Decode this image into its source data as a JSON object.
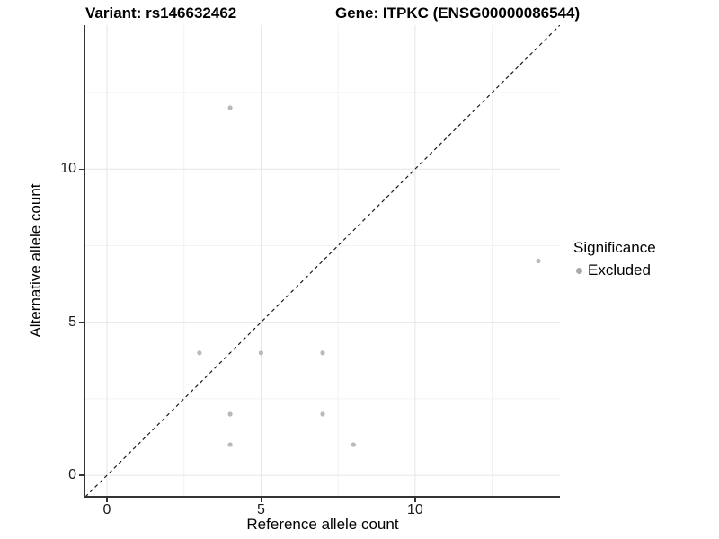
{
  "titles": {
    "variant": "Variant: rs146632462",
    "gene": "Gene: ITPKC (ENSG00000086544)"
  },
  "chart_data": {
    "type": "scatter",
    "xlabel": "Reference allele count",
    "ylabel": "Alternative allele count",
    "xlim": [
      -0.7,
      14.7
    ],
    "ylim": [
      -0.7,
      14.7
    ],
    "x_ticks": [
      0,
      5,
      10
    ],
    "y_ticks": [
      0,
      5,
      10
    ],
    "x_minor_ticks": [
      2.5,
      7.5,
      12.5
    ],
    "y_minor_ticks": [
      2.5,
      7.5,
      12.5
    ],
    "grid": "major_and_minor",
    "identity_line": {
      "style": "dashed",
      "from": -0.7,
      "to": 14.7,
      "color": "#1a1a1a"
    },
    "series": [
      {
        "name": "Excluded",
        "color": "#b9b9b9",
        "points": [
          [
            3,
            4
          ],
          [
            4,
            1
          ],
          [
            4,
            2
          ],
          [
            4,
            12
          ],
          [
            5,
            4
          ],
          [
            7,
            2
          ],
          [
            7,
            4
          ],
          [
            8,
            1
          ],
          [
            14,
            7
          ]
        ]
      }
    ],
    "legend": {
      "position": "right",
      "title": "Significance",
      "entries": [
        {
          "label": "Excluded",
          "color": "#aaaaaa"
        }
      ]
    }
  },
  "style": {
    "grid_major_color": "#e6e6e6",
    "grid_minor_color": "#f2f2f2",
    "axis_color": "#333333",
    "point_radius": 2.6
  }
}
